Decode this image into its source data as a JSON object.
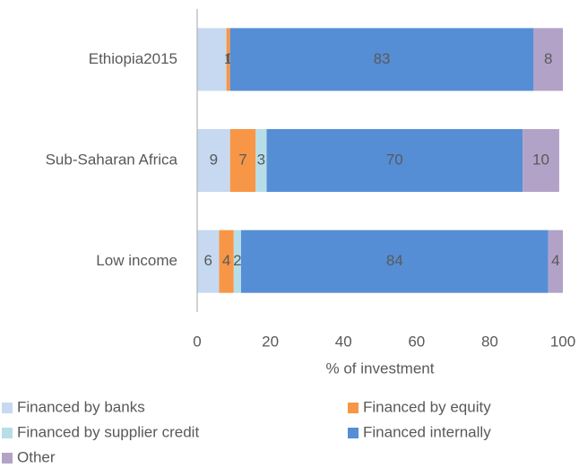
{
  "chart_data": {
    "type": "stacked_bar_horizontal",
    "categories": [
      "Ethiopia2015",
      "Sub-Saharan Africa",
      "Low income"
    ],
    "series": [
      {
        "name": "Financed by banks",
        "color": "#c6d9f1",
        "values": [
          8,
          9,
          6
        ],
        "value_labels": [
          null,
          "9",
          "6"
        ]
      },
      {
        "name": "Financed by equity",
        "color": "#f79646",
        "values": [
          1,
          7,
          4
        ]
      },
      {
        "name": "Financed by supplier credit",
        "color": "#b7dee8",
        "values": [
          0,
          3,
          2
        ]
      },
      {
        "name": "Financed internally",
        "color": "#558ed5",
        "values": [
          83,
          70,
          84
        ]
      },
      {
        "name": "Other",
        "color": "#b3a2c7",
        "values": [
          8,
          10,
          4
        ]
      }
    ],
    "xlabel": "% of investment",
    "xlim": [
      0,
      100
    ],
    "xticks": [
      0,
      20,
      40,
      60,
      80,
      100
    ]
  }
}
